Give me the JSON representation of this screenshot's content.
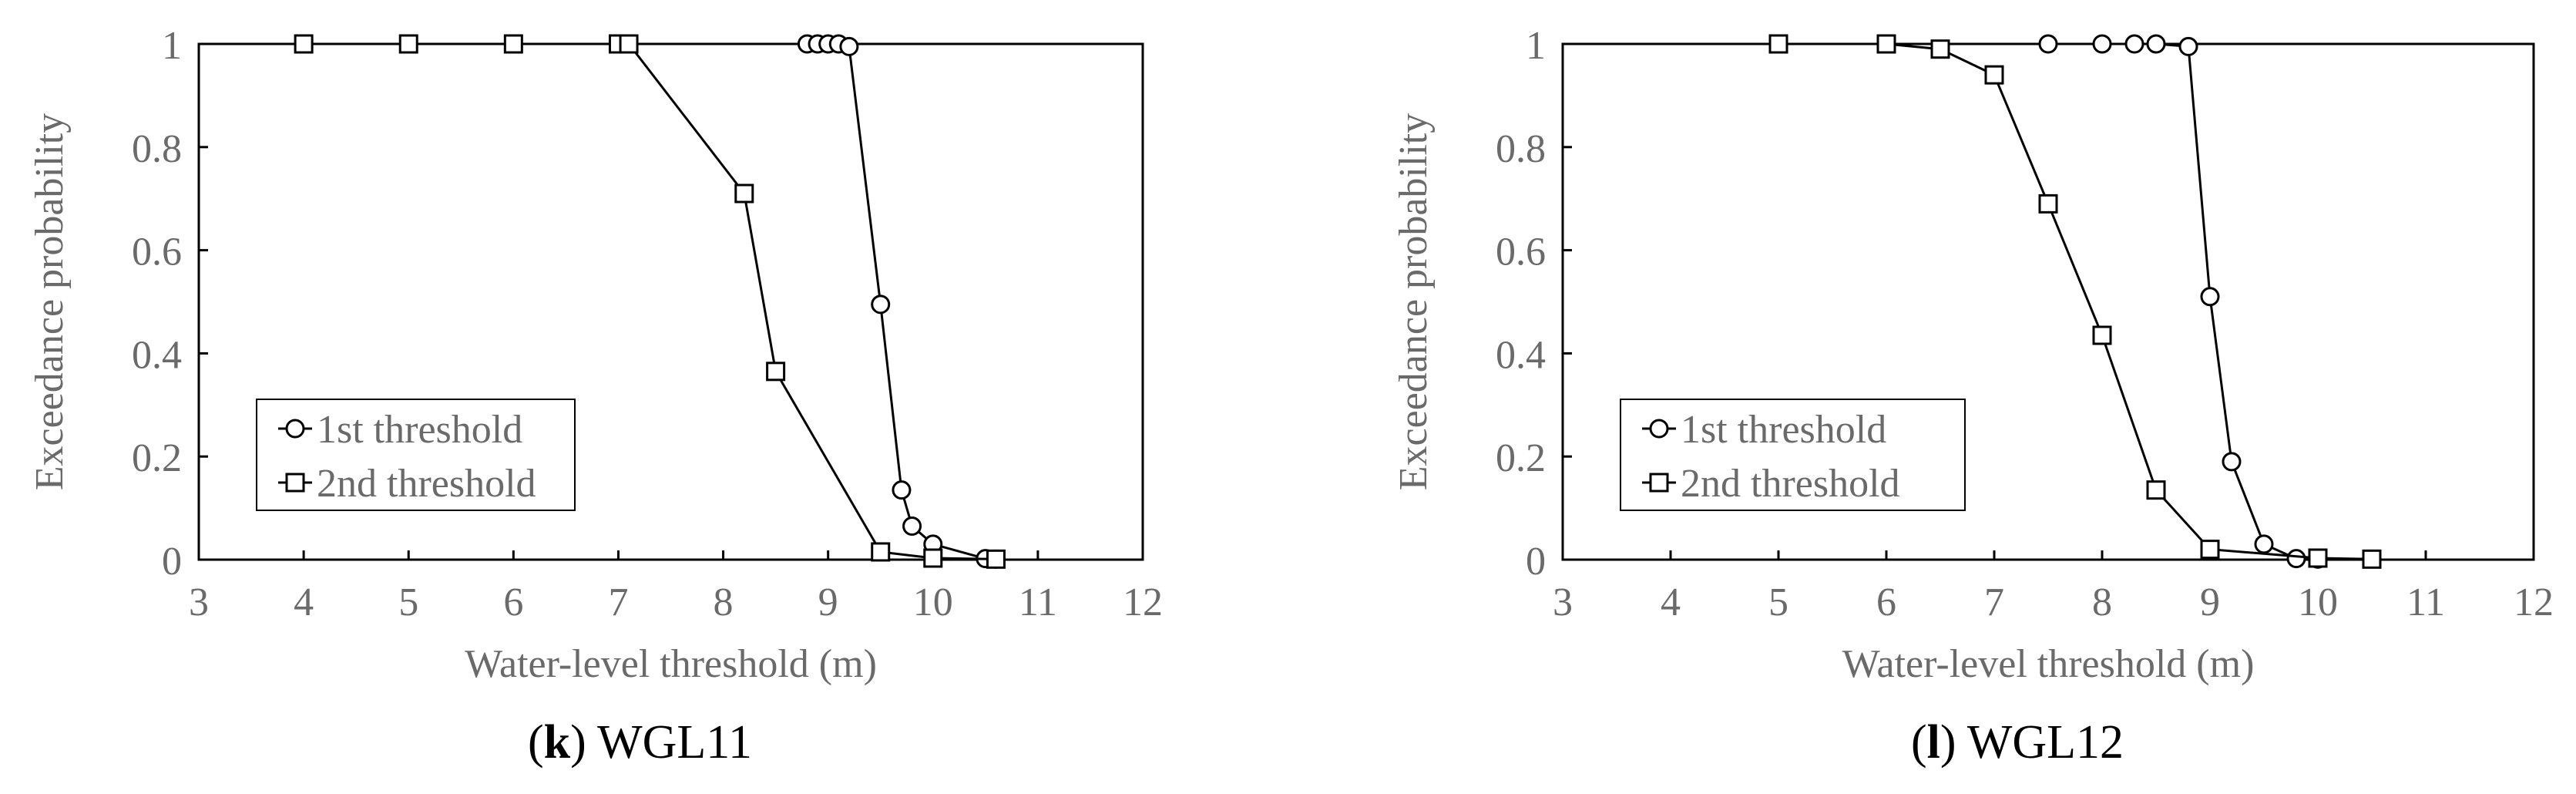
{
  "chart_data": [
    {
      "type": "line",
      "caption_letter": "k",
      "caption_name": "WGL11",
      "xlabel": "Water-level threshold (m)",
      "ylabel": "Exceedance probability",
      "xlim": [
        3,
        12
      ],
      "ylim": [
        0,
        1
      ],
      "xticks": [
        3,
        4,
        5,
        6,
        7,
        8,
        9,
        10,
        11,
        12
      ],
      "yticks": [
        0,
        0.2,
        0.4,
        0.6,
        0.8,
        1
      ],
      "ytick_labels": [
        "0",
        "0.2",
        "0.4",
        "0.6",
        "0.8",
        "1"
      ],
      "grid": false,
      "legend_position": "bottom-left",
      "series": [
        {
          "name": "1st threshold",
          "marker": "circle",
          "points": [
            [
              8.8,
              1
            ],
            [
              8.9,
              1
            ],
            [
              9.0,
              1
            ],
            [
              9.1,
              1
            ],
            [
              9.2,
              0.995
            ],
            [
              9.5,
              0.495
            ],
            [
              9.7,
              0.135
            ],
            [
              9.8,
              0.065
            ],
            [
              10.0,
              0.03
            ],
            [
              10.5,
              0.002
            ],
            [
              10.6,
              0.001
            ]
          ]
        },
        {
          "name": "2nd threshold",
          "marker": "square",
          "points": [
            [
              4,
              1
            ],
            [
              5,
              1
            ],
            [
              6,
              1
            ],
            [
              7,
              1
            ],
            [
              7.1,
              1
            ],
            [
              8.2,
              0.71
            ],
            [
              8.5,
              0.365
            ],
            [
              9.5,
              0.015
            ],
            [
              10.0,
              0.003
            ],
            [
              10.6,
              0.001
            ]
          ]
        }
      ]
    },
    {
      "type": "line",
      "caption_letter": "l",
      "caption_name": "WGL12",
      "xlabel": "Water-level threshold (m)",
      "ylabel": "Exceedance probability",
      "xlim": [
        3,
        12
      ],
      "ylim": [
        0,
        1
      ],
      "xticks": [
        3,
        4,
        5,
        6,
        7,
        8,
        9,
        10,
        11,
        12
      ],
      "yticks": [
        0,
        0.2,
        0.4,
        0.6,
        0.8,
        1
      ],
      "ytick_labels": [
        "0",
        "0.2",
        "0.4",
        "0.6",
        "0.8",
        "1"
      ],
      "grid": false,
      "legend_position": "bottom-left",
      "series": [
        {
          "name": "1st threshold",
          "marker": "circle",
          "points": [
            [
              7.5,
              1
            ],
            [
              8.0,
              1
            ],
            [
              8.3,
              1
            ],
            [
              8.5,
              1
            ],
            [
              8.8,
              0.995
            ],
            [
              9.0,
              0.51
            ],
            [
              9.2,
              0.19
            ],
            [
              9.5,
              0.03
            ],
            [
              9.8,
              0.002
            ],
            [
              10.0,
              0.001
            ]
          ]
        },
        {
          "name": "2nd threshold",
          "marker": "square",
          "points": [
            [
              5,
              1
            ],
            [
              6,
              1
            ],
            [
              6.5,
              0.99
            ],
            [
              7.0,
              0.94
            ],
            [
              7.5,
              0.69
            ],
            [
              8.0,
              0.435
            ],
            [
              8.5,
              0.135
            ],
            [
              9.0,
              0.02
            ],
            [
              10.0,
              0.003
            ],
            [
              10.5,
              0.001
            ]
          ]
        }
      ]
    }
  ]
}
